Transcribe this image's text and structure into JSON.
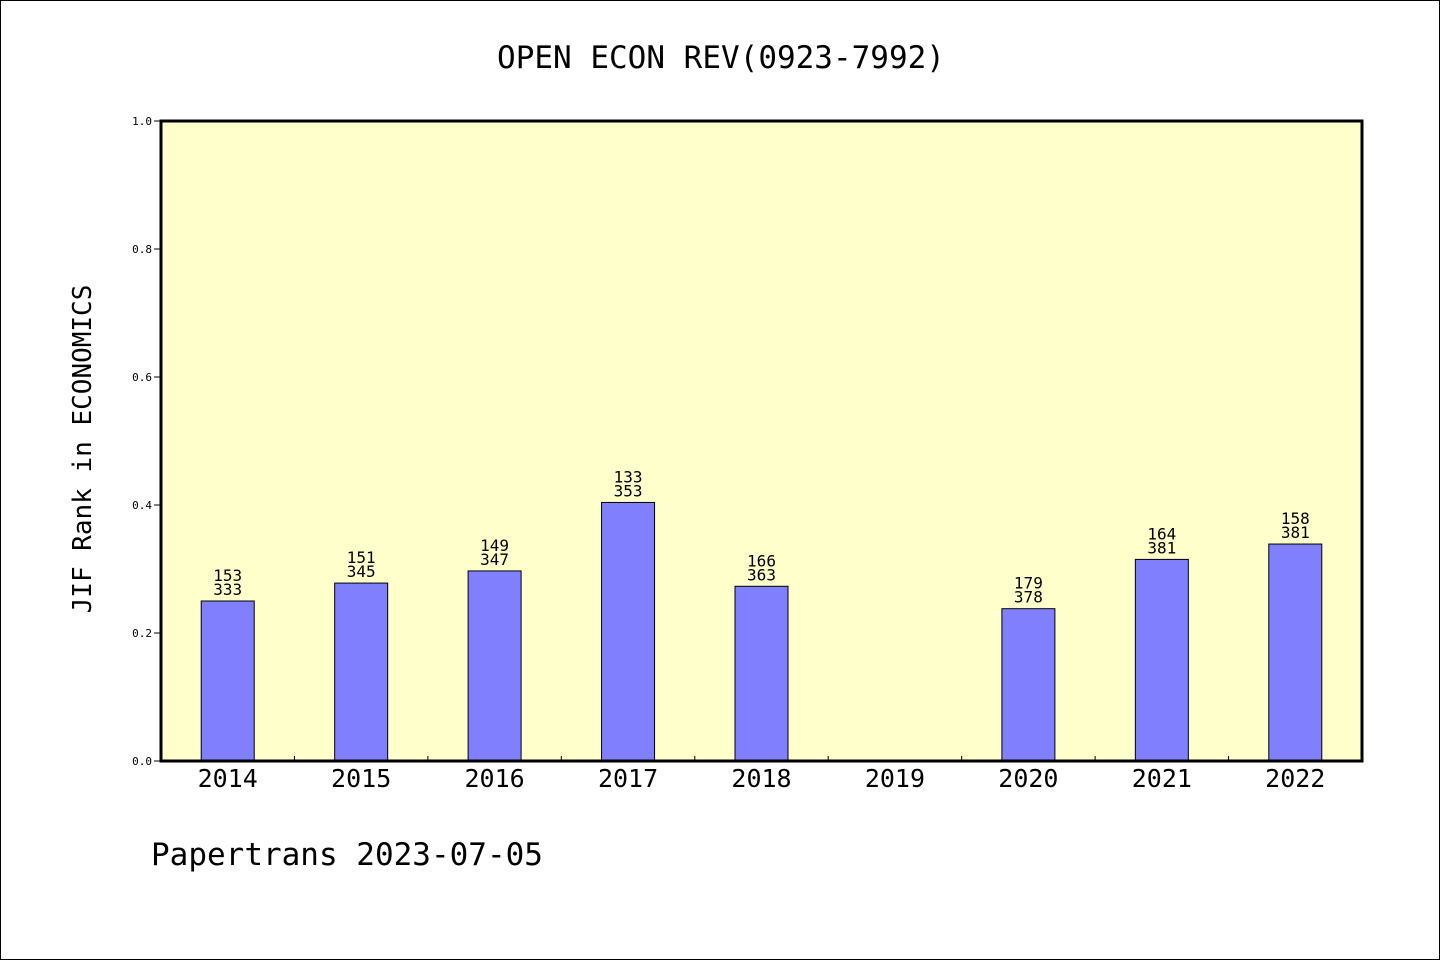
{
  "chart_data": {
    "type": "bar",
    "title": "OPEN ECON REV(0923-7992)",
    "ylabel": "JIF Rank in ECONOMICS",
    "xlabel": "",
    "ylim": [
      0,
      1.0
    ],
    "yticks": [
      "0.0",
      "0.2",
      "0.4",
      "0.6",
      "0.8",
      "1.0"
    ],
    "categories": [
      "2014",
      "2015",
      "2016",
      "2017",
      "2018",
      "2019",
      "2020",
      "2021",
      "2022"
    ],
    "values": [
      0.25,
      0.278,
      0.297,
      0.404,
      0.273,
      null,
      0.238,
      0.315,
      0.339
    ],
    "rank": [
      "153",
      "151",
      "149",
      "133",
      "166",
      "",
      "179",
      "164",
      "158"
    ],
    "total": [
      "333",
      "345",
      "347",
      "353",
      "363",
      "",
      "378",
      "381",
      "381"
    ],
    "grid": false,
    "legend": "none"
  },
  "footer": "Papertrans 2023-07-05",
  "colors": {
    "plot_background": "#ffffcc",
    "bar_fill": "#8080ff",
    "bar_stroke": "#000000",
    "axis": "#000000"
  }
}
